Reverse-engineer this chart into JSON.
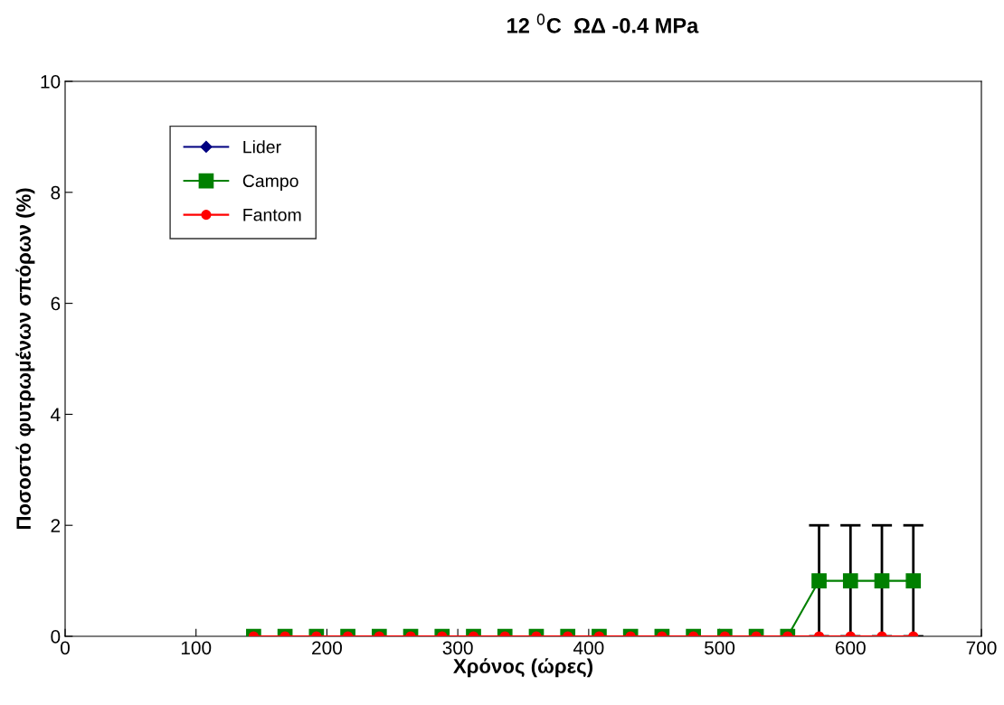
{
  "chart_data": {
    "type": "line",
    "title": "12 $^{0}$C  ΩΔ -0.4 MPa",
    "xlabel": "Χρόνος (ώρες)",
    "ylabel": "Ποσοστό φυτρωμένων σπόρων (%)",
    "x": [
      144,
      168,
      192,
      216,
      240,
      264,
      288,
      312,
      336,
      360,
      384,
      408,
      432,
      456,
      480,
      504,
      528,
      552,
      576,
      600,
      624,
      648
    ],
    "series": [
      {
        "name": "Lider",
        "color": "#000080",
        "marker": "diamond",
        "values": [
          null,
          null,
          null,
          null,
          null,
          null,
          null,
          null,
          null,
          null,
          null,
          null,
          null,
          null,
          null,
          null,
          null,
          null,
          null,
          null,
          null,
          null
        ]
      },
      {
        "name": "Campo",
        "color": "#008000",
        "marker": "square",
        "values": [
          0,
          0,
          0,
          0,
          0,
          0,
          0,
          0,
          0,
          0,
          0,
          0,
          0,
          0,
          0,
          0,
          0,
          0,
          1,
          1,
          1,
          1
        ],
        "errors": [
          null,
          null,
          null,
          null,
          null,
          null,
          null,
          null,
          null,
          null,
          null,
          null,
          null,
          null,
          null,
          null,
          null,
          null,
          1,
          1,
          1,
          1
        ]
      },
      {
        "name": "Fantom",
        "color": "#ff0000",
        "marker": "circle",
        "values": [
          0,
          0,
          0,
          0,
          0,
          0,
          0,
          0,
          0,
          0,
          0,
          0,
          0,
          0,
          0,
          0,
          0,
          0,
          0,
          0,
          0,
          0
        ]
      }
    ],
    "xlim": [
      0,
      700
    ],
    "xticks": [
      0,
      100,
      200,
      300,
      400,
      500,
      600,
      700
    ],
    "ylim": [
      0,
      10
    ],
    "yticks": [
      0,
      2,
      4,
      6,
      8,
      10
    ],
    "grid": false,
    "legend": "top left",
    "line_style": "solid"
  }
}
